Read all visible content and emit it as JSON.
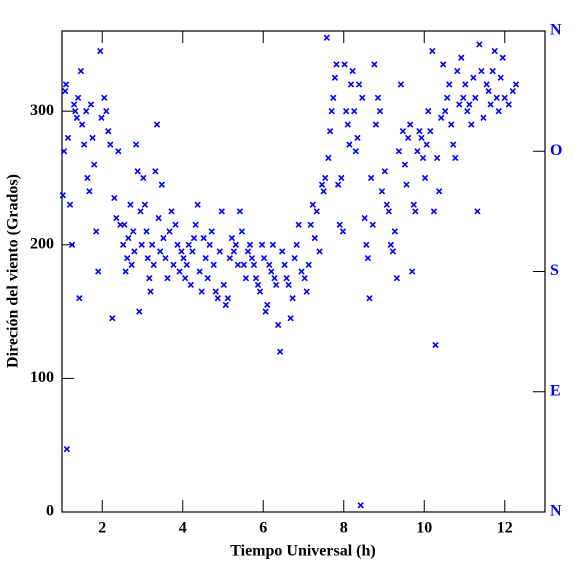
{
  "chart_data": {
    "type": "scatter",
    "x_label": "Tiempo Universal (h)",
    "y_label": "Direción del viento (Grados)",
    "color": "#0000ff",
    "y2_color": "#0000ff",
    "xlim": [
      1,
      13
    ],
    "xticks": [
      2,
      4,
      6,
      8,
      10,
      12
    ],
    "ylim": [
      0,
      360
    ],
    "yticks": [
      0,
      100,
      200,
      300
    ],
    "y2lim": [
      0,
      360
    ],
    "y2ticks": [
      {
        "value": 0,
        "label": "N"
      },
      {
        "value": 90,
        "label": "E"
      },
      {
        "value": 180,
        "label": "S"
      },
      {
        "value": 270,
        "label": "O"
      },
      {
        "value": 360,
        "label": "N"
      }
    ],
    "x": [
      1.02,
      1.05,
      1.08,
      1.1,
      1.12,
      1.15,
      1.2,
      1.25,
      1.3,
      1.33,
      1.37,
      1.4,
      1.43,
      1.47,
      1.5,
      1.55,
      1.6,
      1.63,
      1.68,
      1.72,
      1.76,
      1.8,
      1.85,
      1.9,
      1.95,
      1.98,
      2.05,
      2.1,
      2.15,
      2.2,
      2.25,
      2.3,
      2.35,
      2.4,
      2.45,
      2.52,
      2.55,
      2.58,
      2.62,
      2.65,
      2.7,
      2.73,
      2.77,
      2.8,
      2.84,
      2.88,
      2.92,
      2.95,
      2.98,
      3.02,
      3.06,
      3.1,
      3.13,
      3.17,
      3.2,
      3.24,
      3.28,
      3.32,
      3.36,
      3.4,
      3.44,
      3.48,
      3.52,
      3.57,
      3.62,
      3.67,
      3.72,
      3.77,
      3.82,
      3.87,
      3.92,
      3.97,
      4.02,
      4.06,
      4.1,
      4.15,
      4.2,
      4.24,
      4.28,
      4.32,
      4.37,
      4.42,
      4.47,
      4.52,
      4.57,
      4.62,
      4.67,
      4.72,
      4.77,
      4.82,
      4.87,
      4.92,
      4.97,
      5.02,
      5.07,
      5.12,
      5.17,
      5.22,
      5.27,
      5.32,
      5.37,
      5.42,
      5.47,
      5.52,
      5.57,
      5.62,
      5.67,
      5.72,
      5.77,
      5.82,
      5.87,
      5.92,
      5.97,
      6.02,
      6.06,
      6.1,
      6.15,
      6.2,
      6.24,
      6.28,
      6.32,
      6.37,
      6.42,
      6.47,
      6.53,
      6.58,
      6.63,
      6.68,
      6.73,
      6.78,
      6.83,
      6.88,
      6.95,
      7.03,
      7.08,
      7.13,
      7.18,
      7.23,
      7.28,
      7.33,
      7.4,
      7.46,
      7.5,
      7.54,
      7.58,
      7.62,
      7.66,
      7.7,
      7.74,
      7.78,
      7.82,
      7.86,
      7.9,
      7.94,
      7.98,
      8.02,
      8.06,
      8.1,
      8.14,
      8.18,
      8.22,
      8.26,
      8.3,
      8.34,
      8.38,
      8.42,
      8.46,
      8.52,
      8.56,
      8.6,
      8.64,
      8.68,
      8.72,
      8.76,
      8.8,
      8.85,
      8.9,
      8.95,
      9.02,
      9.07,
      9.12,
      9.17,
      9.22,
      9.27,
      9.32,
      9.37,
      9.42,
      9.47,
      9.52,
      9.56,
      9.6,
      9.65,
      9.7,
      9.74,
      9.78,
      9.83,
      9.88,
      9.93,
      9.97,
      10.02,
      10.06,
      10.1,
      10.15,
      10.2,
      10.24,
      10.28,
      10.32,
      10.37,
      10.42,
      10.47,
      10.52,
      10.57,
      10.62,
      10.67,
      10.72,
      10.77,
      10.82,
      10.87,
      10.92,
      10.97,
      11.02,
      11.07,
      11.12,
      11.17,
      11.22,
      11.27,
      11.32,
      11.37,
      11.42,
      11.47,
      11.55,
      11.6,
      11.65,
      11.7,
      11.75,
      11.8,
      11.85,
      11.9,
      11.95,
      12.0,
      12.1,
      12.2,
      12.28
    ],
    "values": [
      237,
      270,
      315,
      320,
      47,
      280,
      230,
      200,
      305,
      300,
      295,
      310,
      160,
      330,
      290,
      275,
      300,
      250,
      240,
      305,
      280,
      260,
      210,
      180,
      345,
      295,
      310,
      300,
      285,
      275,
      145,
      235,
      220,
      270,
      215,
      200,
      215,
      180,
      190,
      205,
      230,
      185,
      210,
      195,
      275,
      255,
      150,
      225,
      200,
      250,
      230,
      210,
      190,
      175,
      165,
      200,
      185,
      255,
      290,
      220,
      195,
      245,
      205,
      190,
      175,
      210,
      225,
      185,
      215,
      200,
      180,
      195,
      190,
      175,
      185,
      200,
      170,
      195,
      205,
      215,
      230,
      180,
      165,
      205,
      190,
      175,
      200,
      210,
      185,
      165,
      160,
      195,
      225,
      170,
      155,
      160,
      190,
      205,
      195,
      200,
      185,
      225,
      210,
      185,
      175,
      195,
      200,
      190,
      185,
      175,
      170,
      165,
      200,
      190,
      150,
      155,
      185,
      180,
      200,
      175,
      170,
      140,
      120,
      195,
      185,
      175,
      170,
      145,
      160,
      190,
      200,
      215,
      180,
      175,
      165,
      185,
      215,
      230,
      205,
      225,
      195,
      245,
      240,
      250,
      355,
      265,
      285,
      300,
      310,
      325,
      335,
      245,
      215,
      250,
      210,
      335,
      300,
      290,
      275,
      320,
      330,
      300,
      270,
      280,
      320,
      5,
      310,
      220,
      200,
      190,
      160,
      250,
      215,
      335,
      290,
      310,
      300,
      240,
      255,
      230,
      225,
      200,
      195,
      210,
      175,
      270,
      320,
      285,
      260,
      245,
      280,
      290,
      180,
      230,
      225,
      270,
      285,
      280,
      265,
      250,
      275,
      300,
      285,
      345,
      225,
      125,
      265,
      240,
      295,
      335,
      300,
      310,
      320,
      290,
      275,
      265,
      330,
      305,
      340,
      310,
      320,
      300,
      305,
      290,
      325,
      310,
      225,
      350,
      330,
      295,
      320,
      315,
      305,
      330,
      345,
      310,
      300,
      325,
      340,
      310,
      305,
      315,
      320
    ]
  }
}
